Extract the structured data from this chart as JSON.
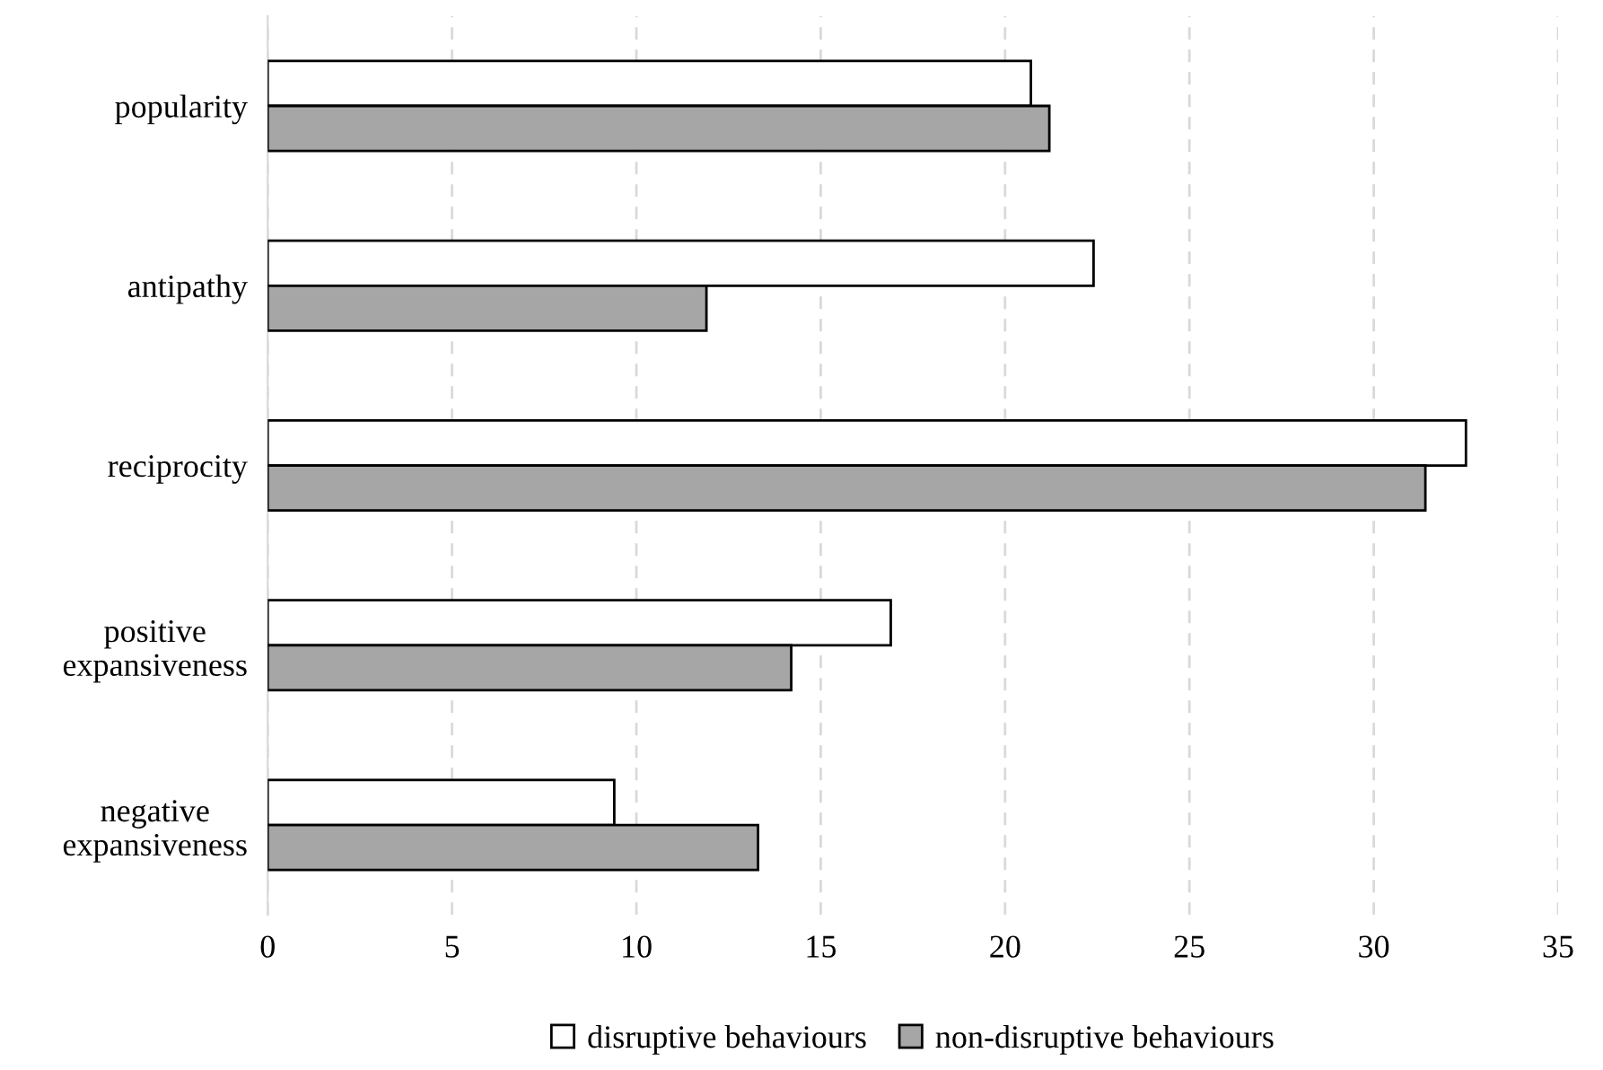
{
  "chart_data": {
    "type": "bar",
    "orientation": "horizontal",
    "categories": [
      "popularity",
      "antipathy",
      "reciprocity",
      "positive\nexpansiveness",
      "negative\nexpansiveness"
    ],
    "series": [
      {
        "name": "disruptive behaviours",
        "color": "#ffffff",
        "values": [
          20.7,
          22.4,
          32.5,
          16.9,
          9.4
        ]
      },
      {
        "name": "non-disruptive behaviours",
        "color": "#a6a6a6",
        "values": [
          21.2,
          11.9,
          31.4,
          14.2,
          13.3
        ]
      }
    ],
    "xlim": [
      0,
      35
    ],
    "xticks": [
      0,
      5,
      10,
      15,
      20,
      25,
      30,
      35
    ],
    "grid": "x",
    "legend": "bottom"
  }
}
